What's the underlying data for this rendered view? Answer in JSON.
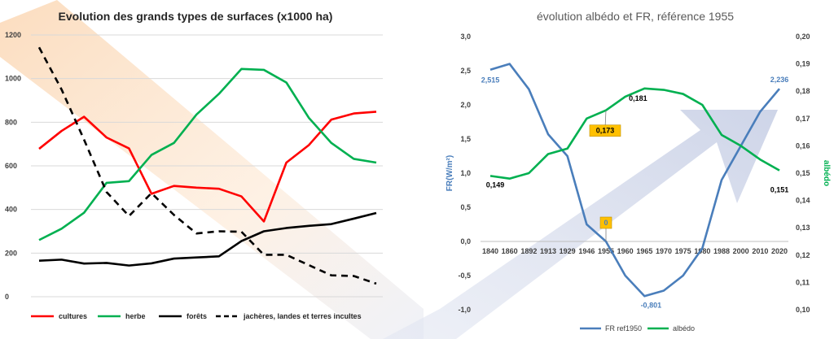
{
  "colors": {
    "cultures": "#ff0000",
    "herbe": "#00b050",
    "forets": "#000000",
    "jacheres": "#000000",
    "fr": "#4a7ebb",
    "albedo": "#00b050",
    "badge": "#ffc000",
    "grid": "#d9d9d9"
  },
  "chart_data": [
    {
      "type": "line",
      "title": "Evolution des grands types de surfaces (x1000 ha)",
      "yticks": [
        "0",
        "200",
        "400",
        "600",
        "800",
        "1000",
        "1200"
      ],
      "ylim": [
        0,
        1200
      ],
      "grid": true,
      "legend_position": "bottom",
      "series": [
        {
          "name": "cultures",
          "color_key": "cultures",
          "dash": false,
          "values": [
            678,
            760,
            825,
            730,
            680,
            472,
            508,
            500,
            495,
            460,
            345,
            615,
            695,
            812,
            840,
            848
          ]
        },
        {
          "name": "herbe",
          "color_key": "herbe",
          "dash": false,
          "values": [
            260,
            312,
            385,
            522,
            530,
            650,
            705,
            835,
            930,
            1044,
            1040,
            982,
            820,
            705,
            632,
            615
          ]
        },
        {
          "name": "forêts",
          "color_key": "forets",
          "dash": false,
          "values": [
            165,
            170,
            152,
            155,
            143,
            153,
            175,
            180,
            185,
            255,
            300,
            315,
            325,
            333,
            358,
            384
          ]
        },
        {
          "name": "jachères, landes et terres incultes",
          "color_key": "jacheres",
          "dash": true,
          "values": [
            1143,
            950,
            720,
            480,
            370,
            475,
            375,
            290,
            300,
            298,
            192,
            192,
            145,
            98,
            95,
            60
          ]
        }
      ]
    },
    {
      "type": "line",
      "title": "évolution albédo et FR, référence 1955",
      "categories": [
        "1840",
        "1860",
        "1892",
        "1913",
        "1929",
        "1946",
        "1955",
        "1960",
        "1965",
        "1970",
        "1975",
        "1980",
        "1988",
        "2000",
        "2010",
        "2020"
      ],
      "ylabel_left": "FR(W/m²)",
      "ylabel_right": "albédo",
      "yticks_left": [
        "3,0",
        "2,5",
        "2,0",
        "1,5",
        "1,0",
        "0,5",
        "0,0",
        "-0,5",
        "-1,0"
      ],
      "yticks_right": [
        "0,20",
        "0,19",
        "0,18",
        "0,17",
        "0,16",
        "0,15",
        "0,14",
        "0,13",
        "0,12",
        "0,11",
        "0,10"
      ],
      "ylim_left": [
        -1.0,
        3.0
      ],
      "ylim_right": [
        0.1,
        0.2
      ],
      "grid": false,
      "legend_position": "bottom",
      "series": [
        {
          "name": "FR ref1950",
          "axis": "left",
          "color_key": "fr",
          "values": [
            2.515,
            2.6,
            2.23,
            1.57,
            1.25,
            0.25,
            0.0,
            -0.5,
            -0.801,
            -0.72,
            -0.5,
            -0.1,
            0.9,
            1.4,
            1.9,
            2.236
          ]
        },
        {
          "name": "albédo",
          "axis": "right",
          "color_key": "albedo",
          "values": [
            0.149,
            0.148,
            0.15,
            0.157,
            0.159,
            0.17,
            0.173,
            0.178,
            0.181,
            0.1805,
            0.179,
            0.175,
            0.164,
            0.16,
            0.155,
            0.151
          ]
        }
      ],
      "data_labels": [
        {
          "series": 0,
          "index": 0,
          "text": "2,515",
          "badge": false,
          "color_key": "fr"
        },
        {
          "series": 0,
          "index": 15,
          "text": "2,236",
          "badge": false,
          "color_key": "fr"
        },
        {
          "series": 0,
          "index": 8,
          "text": "-0,801",
          "badge": false,
          "color_key": "fr"
        },
        {
          "series": 0,
          "index": 6,
          "text": "0",
          "badge": true,
          "color_key": "fr"
        },
        {
          "series": 1,
          "index": 0,
          "text": "0,149",
          "badge": false,
          "color_key": "forets"
        },
        {
          "series": 1,
          "index": 6,
          "text": "0,173",
          "badge": true,
          "color_key": "forets"
        },
        {
          "series": 1,
          "index": 8,
          "text": "0,181",
          "badge": false,
          "color_key": "forets"
        },
        {
          "series": 1,
          "index": 15,
          "text": "0,151",
          "badge": false,
          "color_key": "forets"
        }
      ]
    }
  ]
}
